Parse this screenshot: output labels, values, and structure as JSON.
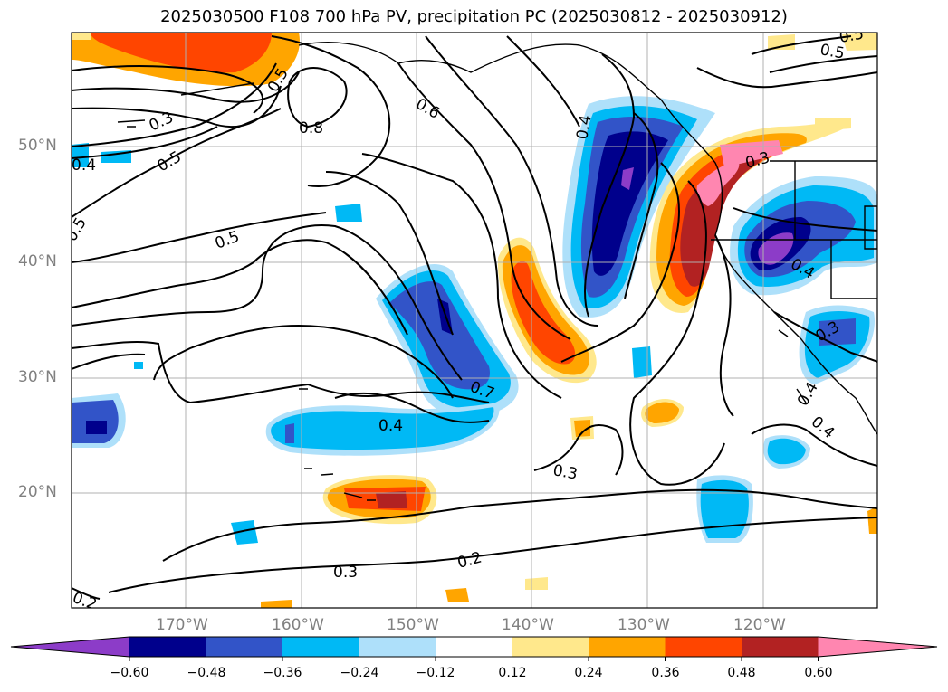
{
  "title": "2025030500 F108 700 hPa PV, precipitation PC (2025030812 - 2025030912)",
  "lat_labels": [
    "50°N",
    "40°N",
    "30°N",
    "20°N"
  ],
  "lon_labels": [
    "170°W",
    "160°W",
    "150°W",
    "140°W",
    "130°W",
    "120°W"
  ],
  "contour_labels": [
    "0.3",
    "0.5",
    "0.8",
    "0.6",
    "0.4",
    "0.5",
    "0.5",
    "0.5",
    "0.4",
    "0.5",
    "0.7",
    "0.4",
    "0.3",
    "0.2",
    "0.3",
    "0.2",
    "0.3",
    "0.4",
    "0.3",
    "0.4",
    "0.4",
    "0.5",
    "0.6"
  ],
  "colorbar": {
    "ticks": [
      "−0.60",
      "−0.48",
      "−0.36",
      "−0.24",
      "−0.12",
      "0.12",
      "0.24",
      "0.36",
      "0.48",
      "0.60"
    ],
    "colors": [
      "#8c3cc8",
      "#00008c",
      "#3254c8",
      "#00b9f5",
      "#aee0fa",
      "#ffffff",
      "#ffe88c",
      "#ffa500",
      "#ff4500",
      "#b22222",
      "#ff86b0"
    ]
  }
}
